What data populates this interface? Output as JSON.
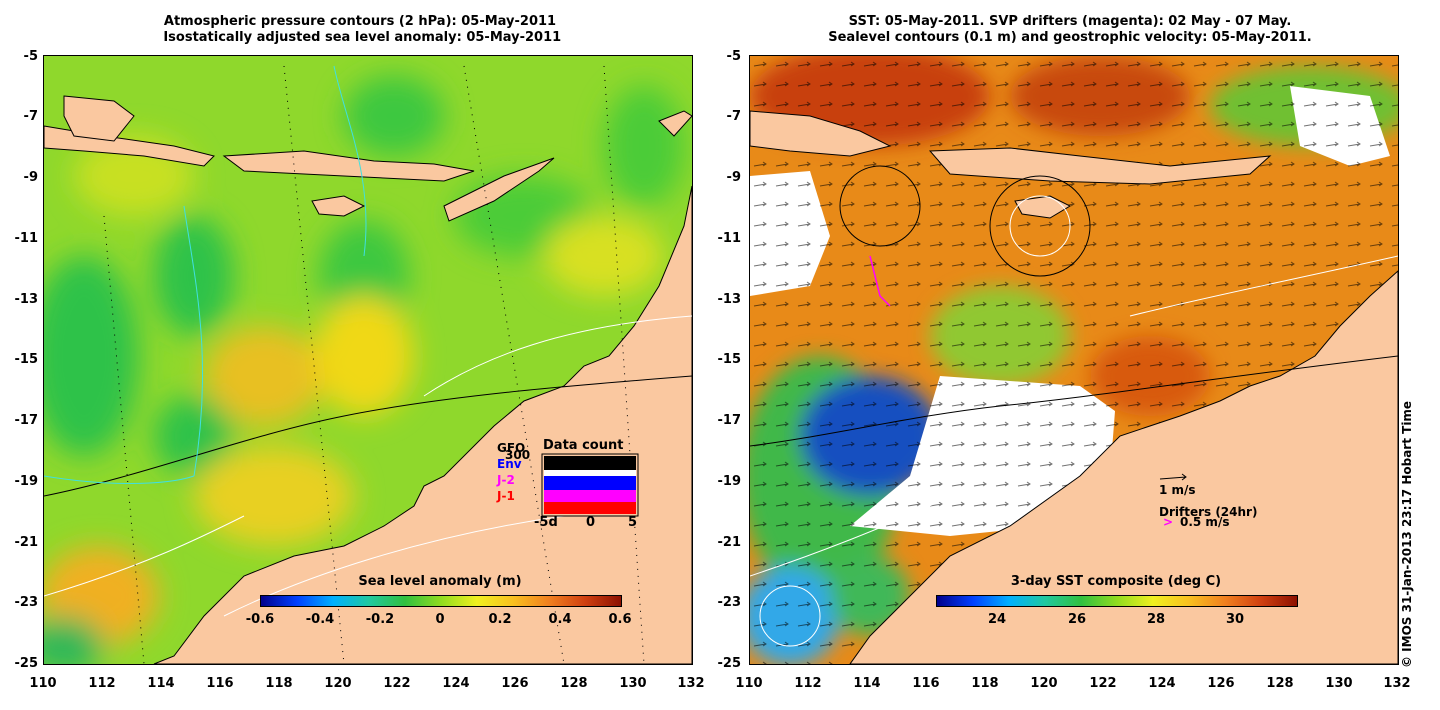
{
  "left_panel": {
    "title_line1": "Atmospheric pressure contours (2 hPa): 05-May-2011",
    "title_line2": " Isostatically adjusted sea level anomaly: 05-May-2011",
    "colorbar": {
      "title": "Sea level anomaly (m)",
      "ticks": [
        "-0.6",
        "-0.4",
        "-0.2",
        "0",
        "0.2",
        "0.4",
        "0.6"
      ]
    },
    "data_count": {
      "title": "Data count",
      "legend": [
        "GFO",
        "Env",
        "J-2",
        "J-1"
      ],
      "legend_colors": [
        "#000000",
        "#0000ff",
        "#ff00ff",
        "#ff0000"
      ],
      "overlap_label": "300",
      "x_ticks": [
        "-5d",
        "0",
        "5"
      ]
    }
  },
  "right_panel": {
    "title_line1": "SST: 05-May-2011. SVP drifters (magenta): 02 May - 07 May.",
    "title_line2": "Sealevel contours (0.1 m) and geostrophic velocity: 05-May-2011.",
    "colorbar": {
      "title": "3-day SST composite (deg C)",
      "ticks": [
        "24",
        "26",
        "28",
        "30"
      ]
    },
    "velocity_scale_label": "1 m/s",
    "drifters_label": "Drifters (24hr)",
    "drifter_scale_symbol": ">",
    "drifter_scale_label": "0.5 m/s"
  },
  "axes": {
    "x_ticks": [
      "110",
      "112",
      "114",
      "116",
      "118",
      "120",
      "122",
      "124",
      "126",
      "128",
      "130",
      "132"
    ],
    "y_ticks": [
      "-5",
      "-7",
      "-9",
      "-11",
      "-13",
      "-15",
      "-17",
      "-19",
      "-21",
      "-23",
      "-25"
    ]
  },
  "credit": "© IMOS 31-Jan-2013 23:17 Hobart Time",
  "colors": {
    "land": "#fac8a0",
    "ocean_green": "#7ed52a",
    "sst_warm": "#e07010"
  }
}
